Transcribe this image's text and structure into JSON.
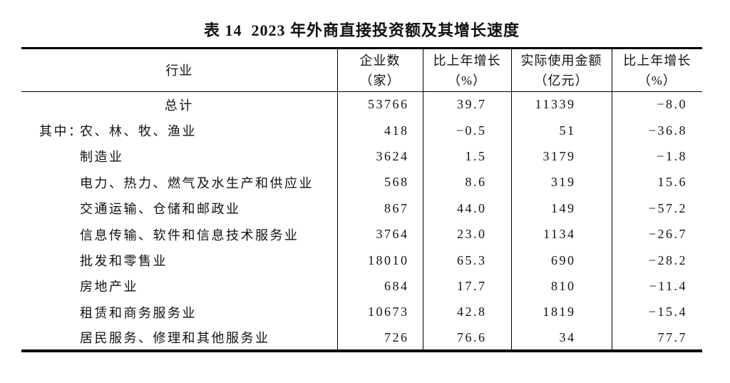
{
  "title": "表 14  2023 年外商直接投资额及其增长速度",
  "colors": {
    "text": "#111111",
    "border": "#000000",
    "background": "#ffffff"
  },
  "table": {
    "header": [
      {
        "line1": "行业",
        "line2": ""
      },
      {
        "line1": "企业数",
        "line2": "（家）"
      },
      {
        "line1": "比上年增长",
        "line2": "（%）"
      },
      {
        "line1": "实际使用金额",
        "line2": "（亿元）"
      },
      {
        "line1": "比上年增长",
        "line2": "（%）"
      }
    ],
    "rows": [
      {
        "prefix": "",
        "label": "总计",
        "values": [
          "53766",
          "39.7",
          "11339",
          "−8.0"
        ]
      },
      {
        "prefix": "其中：",
        "label": "农、林、牧、渔业",
        "values": [
          "418",
          "−0.5",
          "51",
          "−36.8"
        ]
      },
      {
        "prefix": "",
        "label": "制造业",
        "values": [
          "3624",
          "1.5",
          "3179",
          "−1.8"
        ]
      },
      {
        "prefix": "",
        "label": "电力、热力、燃气及水生产和供应业",
        "values": [
          "568",
          "8.6",
          "319",
          "15.6"
        ]
      },
      {
        "prefix": "",
        "label": "交通运输、仓储和邮政业",
        "values": [
          "867",
          "44.0",
          "149",
          "−57.2"
        ]
      },
      {
        "prefix": "",
        "label": "信息传输、软件和信息技术服务业",
        "values": [
          "3764",
          "23.0",
          "1134",
          "−26.7"
        ]
      },
      {
        "prefix": "",
        "label": "批发和零售业",
        "values": [
          "18010",
          "65.3",
          "690",
          "−28.2"
        ]
      },
      {
        "prefix": "",
        "label": "房地产业",
        "values": [
          "684",
          "17.7",
          "810",
          "−11.4"
        ]
      },
      {
        "prefix": "",
        "label": "租赁和商务服务业",
        "values": [
          "10673",
          "42.8",
          "1819",
          "−15.4"
        ]
      },
      {
        "prefix": "",
        "label": "居民服务、修理和其他服务业",
        "values": [
          "726",
          "76.6",
          "34",
          "77.7"
        ]
      }
    ]
  }
}
